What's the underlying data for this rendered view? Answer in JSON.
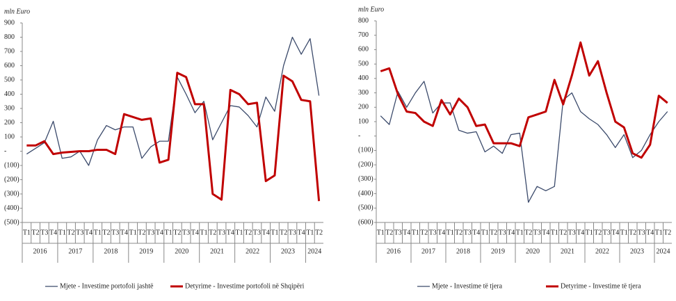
{
  "chart_data": [
    {
      "type": "line",
      "ylabel": "mln Euro",
      "categories": [
        "T1",
        "T2",
        "T3",
        "T4",
        "T1",
        "T2",
        "T3",
        "T4",
        "T1",
        "T2",
        "T3",
        "T4",
        "T1",
        "T2",
        "T3",
        "T4",
        "T1",
        "T2",
        "T3",
        "T4",
        "T1",
        "T2",
        "T3",
        "T4",
        "T1",
        "T2",
        "T3",
        "T4",
        "T1",
        "T2",
        "T3",
        "T4",
        "T1",
        "T2"
      ],
      "years": [
        "2016",
        "2017",
        "2018",
        "2019",
        "2020",
        "2021",
        "2022",
        "2023",
        "2024"
      ],
      "ylim": [
        -500,
        900
      ],
      "yticks": [
        900,
        800,
        700,
        600,
        500,
        400,
        300,
        200,
        100,
        {
          "value": 0,
          "label": "-"
        },
        {
          "value": -100,
          "label": "(100)"
        },
        {
          "value": -200,
          "label": "(200)"
        },
        {
          "value": -300,
          "label": "(300)"
        },
        {
          "value": -400,
          "label": "(400)"
        },
        {
          "value": -500,
          "label": "(500)"
        }
      ],
      "series": [
        {
          "name": "Mjete - Investime portofoli jashtë",
          "color": "#3b4a6b",
          "width": 1.3,
          "values": [
            -20,
            20,
            60,
            210,
            -50,
            -40,
            0,
            -100,
            80,
            180,
            150,
            170,
            170,
            -50,
            30,
            70,
            70,
            520,
            400,
            270,
            350,
            80,
            200,
            320,
            310,
            250,
            170,
            380,
            280,
            600,
            800,
            680,
            790,
            390
          ]
        },
        {
          "name": "Detyrime - Investime portofoli në Shqipëri",
          "color": "#c00000",
          "width": 3,
          "values": [
            40,
            40,
            70,
            -20,
            -10,
            -5,
            0,
            0,
            10,
            10,
            -20,
            260,
            240,
            220,
            230,
            -80,
            -60,
            550,
            520,
            330,
            330,
            -300,
            -340,
            430,
            400,
            330,
            340,
            -210,
            -170,
            530,
            490,
            360,
            350,
            -350
          ]
        }
      ]
    },
    {
      "type": "line",
      "ylabel": "mln Euro",
      "categories": [
        "T1",
        "T2",
        "T3",
        "T4",
        "T1",
        "T2",
        "T3",
        "T4",
        "T1",
        "T2",
        "T3",
        "T4",
        "T1",
        "T2",
        "T3",
        "T4",
        "T1",
        "T2",
        "T3",
        "T4",
        "T1",
        "T2",
        "T3",
        "T4",
        "T1",
        "T2",
        "T3",
        "T4",
        "T1",
        "T2",
        "T3",
        "T4",
        "T1",
        "T2"
      ],
      "years": [
        "2016",
        "2017",
        "2018",
        "2019",
        "2020",
        "2021",
        "2022",
        "2023",
        "2024"
      ],
      "ylim": [
        -600,
        800
      ],
      "yticks": [
        800,
        700,
        600,
        500,
        400,
        300,
        200,
        100,
        {
          "value": 0,
          "label": "-"
        },
        {
          "value": -100,
          "label": "(100)"
        },
        {
          "value": -200,
          "label": "(200)"
        },
        {
          "value": -300,
          "label": "(300)"
        },
        {
          "value": -400,
          "label": "(400)"
        },
        {
          "value": -500,
          "label": "(500)"
        },
        {
          "value": -600,
          "label": "(600)"
        }
      ],
      "series": [
        {
          "name": "Mjete - Investime të tjera",
          "color": "#3b4a6b",
          "width": 1.3,
          "values": [
            140,
            80,
            310,
            200,
            300,
            380,
            160,
            230,
            230,
            40,
            20,
            30,
            -110,
            -70,
            -120,
            10,
            20,
            -460,
            -350,
            -380,
            -350,
            250,
            300,
            170,
            120,
            80,
            10,
            -80,
            10,
            -150,
            -100,
            10,
            100,
            170
          ]
        },
        {
          "name": "Detyrime - Investime të tjera",
          "color": "#c00000",
          "width": 3,
          "values": [
            450,
            470,
            290,
            170,
            160,
            100,
            70,
            250,
            150,
            260,
            200,
            70,
            80,
            -50,
            -50,
            -50,
            -70,
            130,
            150,
            170,
            390,
            220,
            420,
            650,
            420,
            520,
            300,
            100,
            60,
            -120,
            -150,
            -60,
            280,
            230
          ]
        }
      ]
    }
  ]
}
